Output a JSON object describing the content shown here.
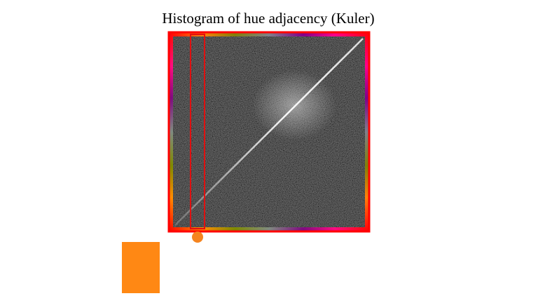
{
  "title": "Histogram of hue adjacency (Kuler)"
}
